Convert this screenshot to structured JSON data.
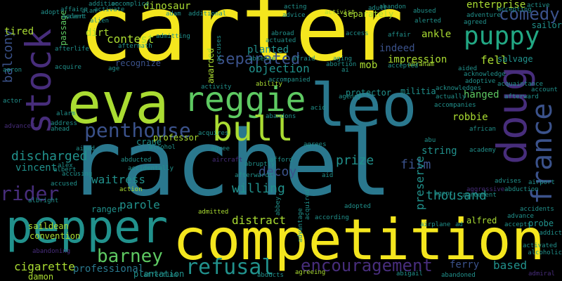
{
  "palette": {
    "background": "#000000",
    "yellow": "#f4e61e",
    "lime": "#aadc32",
    "green": "#5ec962",
    "teal": "#21918c",
    "tealdark": "#2a788e",
    "blue": "#3b528b",
    "purple": "#472d7b",
    "deep": "#440154",
    "cyan": "#22a884"
  },
  "words": [
    {
      "text": "carter",
      "color": "yellow"
    },
    {
      "text": "rachel",
      "color": "tealdark"
    },
    {
      "text": "competition",
      "color": "yellow"
    },
    {
      "text": "pepper",
      "color": "teal"
    },
    {
      "text": "eva",
      "color": "lime"
    },
    {
      "text": "leo",
      "color": "tealdark"
    },
    {
      "text": "doug",
      "color": "purple"
    },
    {
      "text": "stock",
      "color": "purple"
    },
    {
      "text": "france",
      "color": "blue"
    },
    {
      "text": "reggie",
      "color": "green"
    },
    {
      "text": "bull",
      "color": "lime"
    },
    {
      "text": "puppy",
      "color": "cyan"
    },
    {
      "text": "penthouse",
      "color": "blue"
    },
    {
      "text": "comedy",
      "color": "blue"
    },
    {
      "text": "refusal",
      "color": "teal"
    },
    {
      "text": "encouragement",
      "color": "purple"
    },
    {
      "text": "barney",
      "color": "green"
    },
    {
      "text": "rider",
      "color": "purple"
    },
    {
      "text": "balcony",
      "color": "blue"
    },
    {
      "text": "separated",
      "color": "blue"
    },
    {
      "text": "dinosaur",
      "color": "lime"
    },
    {
      "text": "contest",
      "color": "lime"
    },
    {
      "text": "objection",
      "color": "teal"
    },
    {
      "text": "discharged",
      "color": "teal"
    },
    {
      "text": "prize",
      "color": "teal"
    },
    {
      "text": "film",
      "color": "blue"
    },
    {
      "text": "string",
      "color": "teal"
    },
    {
      "text": "preserve",
      "color": "teal"
    },
    {
      "text": "thousand",
      "color": "teal"
    },
    {
      "text": "willing",
      "color": "teal"
    },
    {
      "text": "decoy",
      "color": "blue"
    },
    {
      "text": "parole",
      "color": "teal"
    },
    {
      "text": "waitress",
      "color": "teal"
    },
    {
      "text": "vincent",
      "color": "teal"
    },
    {
      "text": "distract",
      "color": "lime"
    },
    {
      "text": "professional",
      "color": "tealdark"
    },
    {
      "text": "cigarette",
      "color": "lime"
    },
    {
      "text": "based",
      "color": "teal"
    },
    {
      "text": "ferry",
      "color": "blue"
    },
    {
      "text": "robbie",
      "color": "lime"
    },
    {
      "text": "hanged",
      "color": "green"
    },
    {
      "text": "fell",
      "color": "lime"
    },
    {
      "text": "impression",
      "color": "lime"
    },
    {
      "text": "enterprise",
      "color": "lime"
    },
    {
      "text": "indeed",
      "color": "blue"
    },
    {
      "text": "militia",
      "color": "teal"
    },
    {
      "text": "salvage",
      "color": "teal"
    },
    {
      "text": "tired",
      "color": "lime"
    },
    {
      "text": "planted",
      "color": "teal"
    },
    {
      "text": "mob",
      "color": "lime"
    },
    {
      "text": "ankle",
      "color": "lime"
    },
    {
      "text": "saildean",
      "color": "lime"
    },
    {
      "text": "convention",
      "color": "lime"
    },
    {
      "text": "plantation",
      "color": "teal"
    },
    {
      "text": "damon",
      "color": "lime"
    },
    {
      "text": "protector",
      "color": "teal"
    },
    {
      "text": "crane",
      "color": "teal"
    },
    {
      "text": "professor",
      "color": "lime"
    },
    {
      "text": "dirt",
      "color": "lime"
    },
    {
      "text": "separately",
      "color": "lime"
    },
    {
      "text": "alfred",
      "color": "lime"
    },
    {
      "text": "awarded",
      "color": "lime"
    },
    {
      "text": "sailor",
      "color": "teal"
    },
    {
      "text": "ranger",
      "color": "teal"
    },
    {
      "text": "passage",
      "color": "green"
    },
    {
      "text": "recognize",
      "color": "blue"
    },
    {
      "text": "acquire",
      "color": "teal"
    },
    {
      "text": "accent",
      "color": "teal"
    },
    {
      "text": "aaron",
      "color": "teal"
    },
    {
      "text": "acting",
      "color": "teal"
    },
    {
      "text": "advice",
      "color": "teal"
    },
    {
      "text": "abandon",
      "color": "teal"
    },
    {
      "text": "agreeing",
      "color": "lime"
    },
    {
      "text": "affection",
      "color": "teal"
    },
    {
      "text": "abducts",
      "color": "teal"
    },
    {
      "text": "abigail",
      "color": "teal"
    },
    {
      "text": "abandoned",
      "color": "teal"
    },
    {
      "text": "admiral",
      "color": "purple"
    },
    {
      "text": "alcoholic",
      "color": "teal"
    },
    {
      "text": "addict",
      "color": "teal"
    },
    {
      "text": "active",
      "color": "teal"
    },
    {
      "text": "adventure",
      "color": "teal"
    },
    {
      "text": "agreed",
      "color": "teal"
    },
    {
      "text": "acquaintance",
      "color": "teal"
    },
    {
      "text": "account",
      "color": "teal"
    },
    {
      "text": "afterward",
      "color": "teal"
    },
    {
      "text": "abduction",
      "color": "teal"
    },
    {
      "text": "airport",
      "color": "teal"
    },
    {
      "text": "academy",
      "color": "teal"
    },
    {
      "text": "african",
      "color": "teal"
    },
    {
      "text": "accompanies",
      "color": "teal"
    },
    {
      "text": "actually",
      "color": "teal"
    },
    {
      "text": "acknowledges",
      "color": "teal"
    },
    {
      "text": "aided",
      "color": "teal"
    },
    {
      "text": "adoptive",
      "color": "teal"
    },
    {
      "text": "agent",
      "color": "teal"
    },
    {
      "text": "aggressive",
      "color": "purple"
    },
    {
      "text": "advises",
      "color": "teal"
    },
    {
      "text": "advance",
      "color": "teal"
    },
    {
      "text": "accepts",
      "color": "teal"
    },
    {
      "text": "probe",
      "color": "teal"
    },
    {
      "text": "activated",
      "color": "teal"
    },
    {
      "text": "airplane",
      "color": "teal"
    },
    {
      "text": "ad",
      "color": "teal"
    },
    {
      "text": "abu",
      "color": "teal"
    },
    {
      "text": "aid",
      "color": "teal"
    },
    {
      "text": "agrees",
      "color": "teal"
    },
    {
      "text": "afford",
      "color": "teal"
    },
    {
      "text": "abruptly",
      "color": "teal"
    },
    {
      "text": "afterwards",
      "color": "teal"
    },
    {
      "text": "aircraft",
      "color": "purple"
    },
    {
      "text": "abducted",
      "color": "teal"
    },
    {
      "text": "accidentally",
      "color": "teal"
    },
    {
      "text": "agree",
      "color": "teal"
    },
    {
      "text": "alcohol",
      "color": "teal"
    },
    {
      "text": "aimed",
      "color": "teal"
    },
    {
      "text": "action",
      "color": "lime"
    },
    {
      "text": "admitted",
      "color": "lime"
    },
    {
      "text": "according",
      "color": "teal"
    },
    {
      "text": "adopted",
      "color": "teal"
    },
    {
      "text": "acquired",
      "color": "teal"
    },
    {
      "text": "abbey",
      "color": "teal"
    },
    {
      "text": "advantage",
      "color": "teal"
    },
    {
      "text": "accused",
      "color": "teal"
    },
    {
      "text": "albright",
      "color": "teal"
    },
    {
      "text": "abandoning",
      "color": "purple"
    },
    {
      "text": "address",
      "color": "teal"
    },
    {
      "text": "ahead",
      "color": "teal"
    },
    {
      "text": "advanced",
      "color": "purple"
    },
    {
      "text": "alarm",
      "color": "teal"
    },
    {
      "text": "actor",
      "color": "teal"
    },
    {
      "text": "affair",
      "color": "teal"
    },
    {
      "text": "access",
      "color": "teal"
    },
    {
      "text": "agency",
      "color": "teal"
    },
    {
      "text": "acid",
      "color": "teal"
    },
    {
      "text": "abroad",
      "color": "teal"
    },
    {
      "text": "adult",
      "color": "teal"
    },
    {
      "text": "abused",
      "color": "teal"
    },
    {
      "text": "alerted",
      "color": "teal"
    },
    {
      "text": "abraham",
      "color": "lime"
    },
    {
      "text": "accepted",
      "color": "teal"
    },
    {
      "text": "abortion",
      "color": "teal"
    },
    {
      "text": "aging",
      "color": "teal"
    },
    {
      "text": "ai",
      "color": "teal"
    },
    {
      "text": "afraid",
      "color": "teal"
    },
    {
      "text": "absence",
      "color": "teal"
    },
    {
      "text": "accompanied",
      "color": "teal"
    },
    {
      "text": "ability",
      "color": "lime"
    },
    {
      "text": "activity",
      "color": "teal"
    },
    {
      "text": "acquires",
      "color": "teal"
    },
    {
      "text": "abandons",
      "color": "teal"
    },
    {
      "text": "actuated",
      "color": "teal"
    },
    {
      "text": "additional",
      "color": "teal"
    },
    {
      "text": "adam",
      "color": "teal"
    },
    {
      "text": "admitting",
      "color": "teal"
    },
    {
      "text": "aftermath",
      "color": "teal"
    },
    {
      "text": "age",
      "color": "teal"
    },
    {
      "text": "activate",
      "color": "teal"
    },
    {
      "text": "accomplice",
      "color": "teal"
    },
    {
      "text": "activist",
      "color": "lime"
    },
    {
      "text": "addition",
      "color": "teal"
    },
    {
      "text": "adopt",
      "color": "teal"
    },
    {
      "text": "alan",
      "color": "teal"
    },
    {
      "text": "alert",
      "color": "teal"
    },
    {
      "text": "afterlife",
      "color": "teal"
    },
    {
      "text": "alien",
      "color": "teal"
    },
    {
      "text": "affairs",
      "color": "teal"
    },
    {
      "text": "accusing",
      "color": "teal"
    },
    {
      "text": "accepting",
      "color": "teal"
    },
    {
      "text": "acknowledge",
      "color": "teal"
    },
    {
      "text": "accuses",
      "color": "teal"
    },
    {
      "text": "alex",
      "color": "teal"
    },
    {
      "text": "albert",
      "color": "teal"
    },
    {
      "text": "agreement",
      "color": "teal"
    },
    {
      "text": "accidents",
      "color": "teal"
    }
  ]
}
